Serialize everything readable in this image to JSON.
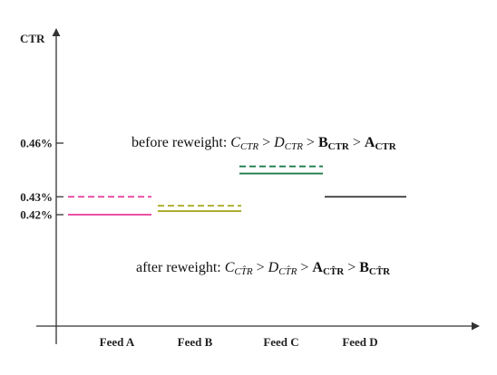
{
  "chart_data": {
    "type": "line",
    "ylabel": "CTR",
    "xlabel": "",
    "categories": [
      "Feed A",
      "Feed B",
      "Feed C",
      "Feed D"
    ],
    "yticks": [
      "0.42%",
      "0.43%",
      "0.46%"
    ],
    "ytick_values": [
      0.42,
      0.43,
      0.46
    ],
    "series": [
      {
        "dash": "solid",
        "values": [
          0.42,
          0.422,
          0.443,
          0.43
        ]
      },
      {
        "dash": "dashed",
        "values": [
          0.43,
          0.425,
          0.447,
          null
        ]
      }
    ],
    "colors": [
      "#e8399a",
      "#a8a820",
      "#1e7a4a",
      "#333333"
    ],
    "annotations": {
      "before": {
        "prefix": "before reweight: ",
        "terms": [
          "C",
          "CTR",
          "D",
          "CTR",
          "B",
          "CTR",
          "A",
          "CTR"
        ]
      },
      "after": {
        "prefix": "after reweight: ",
        "terms": [
          "C",
          "CT̂R",
          "D",
          "CT̂R",
          "A",
          "CT̂R",
          "B",
          "CT̂R"
        ]
      }
    }
  }
}
